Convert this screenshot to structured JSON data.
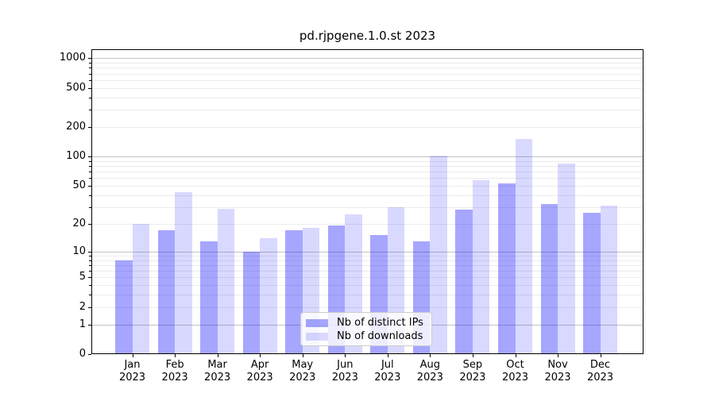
{
  "title": "pd.rjpgene.1.0.st 2023",
  "legend": {
    "items": [
      {
        "label": "Nb of distinct IPs",
        "color": "rgba(0,0,255,0.35)"
      },
      {
        "label": "Nb of downloads",
        "color": "rgba(0,0,255,0.15)"
      }
    ]
  },
  "colors": {
    "bar_distinct_ips": "rgba(0,0,255,0.35)",
    "bar_downloads": "rgba(0,0,255,0.15)",
    "grid_major": "#c3c3c3",
    "grid_minor": "#ececec",
    "axis": "#000000",
    "background": "#ffffff"
  },
  "chart_data": {
    "type": "bar",
    "title": "pd.rjpgene.1.0.st 2023",
    "scale": "log1p",
    "categories": [
      "Jan",
      "Feb",
      "Mar",
      "Apr",
      "May",
      "Jun",
      "Jul",
      "Aug",
      "Sep",
      "Oct",
      "Nov",
      "Dec"
    ],
    "year": "2023",
    "series": [
      {
        "name": "Nb of distinct IPs",
        "values": [
          8,
          17,
          13,
          10,
          17,
          19,
          15,
          13,
          28,
          53,
          32,
          26
        ],
        "color": "rgba(0,0,255,0.35)"
      },
      {
        "name": "Nb of downloads",
        "values": [
          20,
          43,
          29,
          14,
          18,
          25,
          30,
          102,
          57,
          150,
          85,
          31
        ],
        "color": "rgba(0,0,255,0.15)"
      }
    ],
    "y_ticks": [
      0,
      1,
      2,
      5,
      10,
      20,
      50,
      100,
      200,
      500,
      1000
    ],
    "y_major": [
      1,
      10,
      100,
      1000
    ],
    "ylim": [
      0,
      1234
    ],
    "grid": true,
    "legend_position": "lower center",
    "xlabel": "",
    "ylabel": ""
  }
}
